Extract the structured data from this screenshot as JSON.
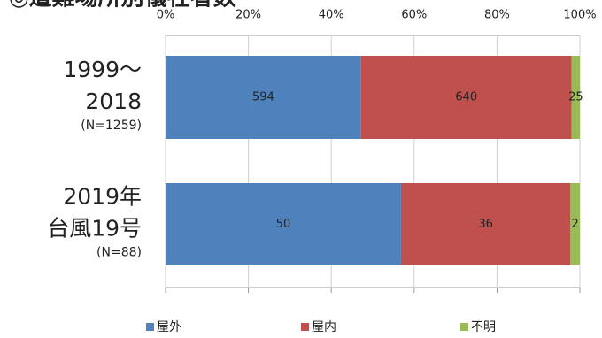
{
  "chart_data": {
    "type": "stacked-bar-100",
    "title": "◎遭難場所別犠牲者数",
    "categories": [
      [
        "1999～",
        "2018"
      ],
      [
        "2019年",
        "台風19号"
      ]
    ],
    "category_notes": [
      "(N=1259)",
      "(N=88)"
    ],
    "series": [
      {
        "name": "屋外",
        "color": "#4f81bd",
        "values": [
          594,
          50
        ]
      },
      {
        "name": "屋内",
        "color": "#c0504d",
        "values": [
          640,
          36
        ]
      },
      {
        "name": "不明",
        "color": "#9bbb59",
        "values": [
          25,
          2
        ]
      }
    ],
    "xlim": [
      0,
      100
    ],
    "xticks": [
      {
        "value": 0,
        "label": "0%"
      },
      {
        "value": 20,
        "label": "20%"
      },
      {
        "value": 40,
        "label": "40%"
      },
      {
        "value": 60,
        "label": "60%"
      },
      {
        "value": 80,
        "label": "80%"
      },
      {
        "value": 100,
        "label": "100%"
      }
    ],
    "grid": true,
    "legend": "bottom"
  }
}
